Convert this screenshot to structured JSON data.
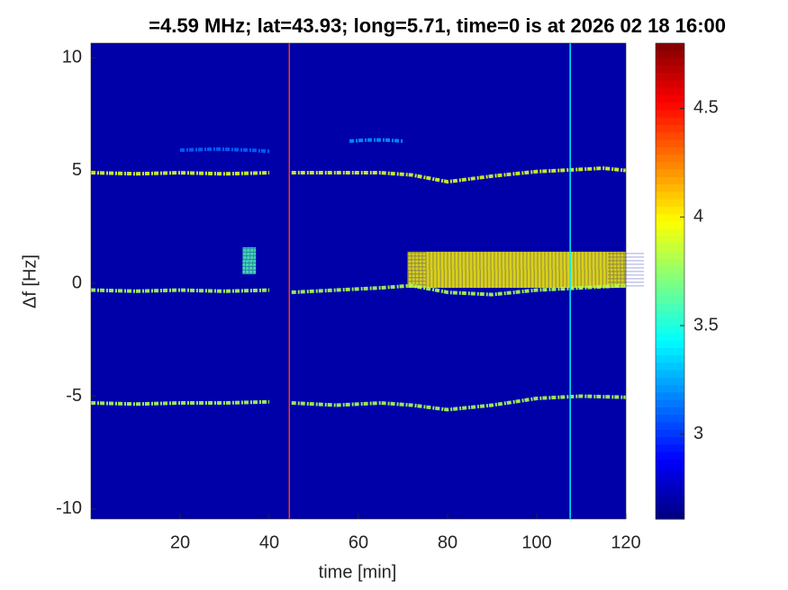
{
  "chart_data": {
    "type": "spectrogram",
    "title": "=4.59 MHz;  lat=43.93; long=5.71, time=0 is at 2026 02 18 16:00",
    "xlabel": "time [min]",
    "ylabel": "Δf [Hz]",
    "xlim": [
      0,
      120
    ],
    "ylim": [
      -10.44,
      10.64
    ],
    "xticks": [
      20,
      40,
      60,
      80,
      100,
      120
    ],
    "yticks": [
      -10,
      -5,
      0,
      5,
      10
    ],
    "colormap": "jet",
    "clim": [
      2.61,
      4.8
    ],
    "cticks": [
      3,
      3.5,
      4,
      4.5
    ],
    "background": 2.7,
    "traces": [
      {
        "x": [
          0,
          10,
          20,
          30,
          40,
          42,
          45,
          55,
          65,
          72,
          80,
          90,
          100,
          110,
          115,
          120
        ],
        "y": [
          4.9,
          4.85,
          4.9,
          4.85,
          4.9,
          null,
          4.9,
          4.9,
          4.9,
          4.8,
          4.5,
          4.75,
          4.95,
          5.05,
          5.1,
          5.0
        ],
        "level": 3.9
      },
      {
        "x": [
          0,
          10,
          20,
          30,
          40,
          42,
          45,
          55,
          65,
          72,
          80,
          90,
          100,
          110,
          120
        ],
        "y": [
          -0.3,
          -0.35,
          -0.3,
          -0.35,
          -0.3,
          null,
          -0.4,
          -0.3,
          -0.2,
          -0.1,
          -0.4,
          -0.5,
          -0.3,
          -0.2,
          -0.1
        ],
        "level": 3.8
      },
      {
        "x": [
          0,
          10,
          20,
          30,
          40,
          42,
          45,
          55,
          65,
          72,
          80,
          90,
          100,
          110,
          120
        ],
        "y": [
          -5.3,
          -5.35,
          -5.3,
          -5.3,
          -5.25,
          null,
          -5.3,
          -5.4,
          -5.3,
          -5.4,
          -5.6,
          -5.4,
          -5.1,
          -5.0,
          -5.05
        ],
        "level": 3.8
      },
      {
        "x": [
          58,
          62,
          66,
          70
        ],
        "y": [
          6.3,
          6.35,
          6.35,
          6.3
        ],
        "level": 3.2
      },
      {
        "x": [
          20,
          28,
          36,
          40
        ],
        "y": [
          5.9,
          5.95,
          5.9,
          5.85
        ],
        "level": 3.1
      }
    ],
    "regions": [
      {
        "x": [
          71,
          120
        ],
        "y": [
          -0.2,
          1.4
        ],
        "level": 4.0
      },
      {
        "x": [
          34,
          37
        ],
        "y": [
          0.4,
          1.6
        ],
        "level": 3.6
      }
    ],
    "vlines": [
      {
        "x": 44.5,
        "level": 4.4
      },
      {
        "x": 107.5,
        "level": 3.4
      }
    ]
  }
}
